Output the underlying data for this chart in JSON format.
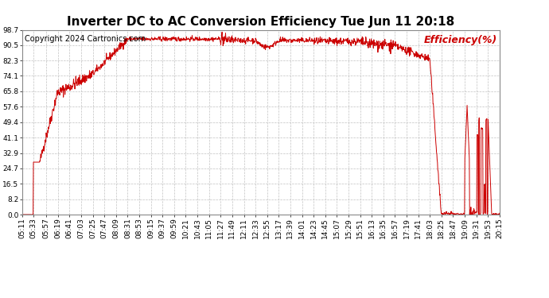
{
  "title": "Inverter DC to AC Conversion Efficiency Tue Jun 11 20:18",
  "copyright": "Copyright 2024 Cartronics.com",
  "legend_label": "Efficiency(%)",
  "line_color": "#cc0000",
  "background_color": "#ffffff",
  "grid_color": "#aaaaaa",
  "yticks": [
    0.0,
    8.2,
    16.5,
    24.7,
    32.9,
    41.1,
    49.4,
    57.6,
    65.8,
    74.1,
    82.3,
    90.5,
    98.7
  ],
  "xtick_labels": [
    "05:11",
    "05:33",
    "05:57",
    "06:19",
    "06:41",
    "07:03",
    "07:25",
    "07:47",
    "08:09",
    "08:31",
    "08:53",
    "09:15",
    "09:37",
    "09:59",
    "10:21",
    "10:43",
    "11:05",
    "11:27",
    "11:49",
    "12:11",
    "12:33",
    "12:55",
    "13:17",
    "13:39",
    "14:01",
    "14:23",
    "14:45",
    "15:07",
    "15:29",
    "15:51",
    "16:13",
    "16:35",
    "16:57",
    "17:19",
    "17:41",
    "18:03",
    "18:25",
    "18:47",
    "19:09",
    "19:31",
    "19:53",
    "20:15"
  ],
  "ymin": 0.0,
  "ymax": 98.7,
  "title_fontsize": 11,
  "copyright_fontsize": 7,
  "legend_fontsize": 9,
  "tick_fontsize": 6.5
}
